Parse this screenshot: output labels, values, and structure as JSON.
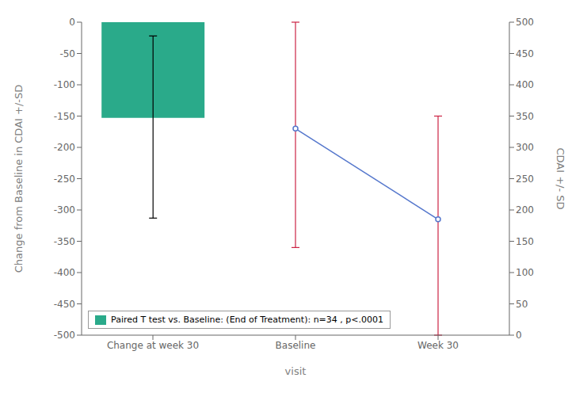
{
  "chart_data": {
    "type": "bar",
    "categories": [
      "Change at week 30",
      "Baseline",
      "Week 30"
    ],
    "xlabel": "visit",
    "ylabel": "Change from Baseline in CDAI +/-SD",
    "y2label": "CDAI +/- SD",
    "ylim": [
      -500,
      0
    ],
    "yticks": [
      0,
      -50,
      -100,
      -150,
      -200,
      -250,
      -300,
      -350,
      -400,
      -450,
      -500
    ],
    "y2lim": [
      0,
      500
    ],
    "y2ticks": [
      0,
      50,
      100,
      150,
      200,
      250,
      300,
      350,
      400,
      450,
      500
    ],
    "grid": false,
    "legend": "lower left",
    "series": [
      {
        "name": "Paired T test vs. Baseline: (End of Treatment): n=34 , p<.0001",
        "type": "bar",
        "color": "#2aaa8a",
        "values": [
          -153,
          null,
          null
        ],
        "error": {
          "low": [
            -313,
            null,
            null
          ],
          "high": [
            -22,
            null,
            null
          ],
          "color": "#000000"
        }
      },
      {
        "type": "line",
        "axis": "y2",
        "color": "#5577cc",
        "values": [
          null,
          330,
          185
        ],
        "error": {
          "low": [
            null,
            140,
            0
          ],
          "high": [
            null,
            500,
            350
          ],
          "color": "#cc2244"
        }
      }
    ]
  }
}
